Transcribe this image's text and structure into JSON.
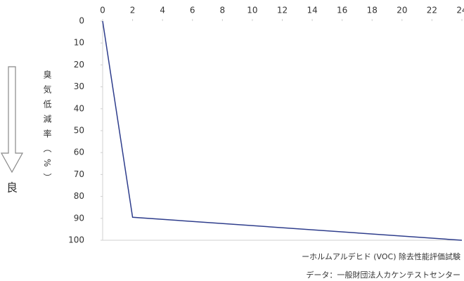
{
  "chart_data": {
    "type": "line",
    "ylabel": "臭気低減率（%）",
    "arrow_label": "良",
    "notes": [
      "ーホルムアルデヒド (VOC) 除去性能評価試験",
      "データ：一般財団法人カケンテストセンター"
    ],
    "x": [
      0,
      2,
      24
    ],
    "series": [
      {
        "color": "#2e3d8c",
        "values": [
          0,
          89.5,
          100
        ]
      }
    ],
    "xlim": [
      0,
      24
    ],
    "xticks": [
      0,
      2,
      4,
      6,
      8,
      10,
      12,
      14,
      16,
      18,
      20,
      22,
      24
    ],
    "ylim": [
      0,
      100
    ],
    "yticks": [
      0,
      10,
      20,
      30,
      40,
      50,
      60,
      70,
      80,
      90,
      100
    ],
    "y_inverted": true,
    "x_axis_position": "top"
  }
}
